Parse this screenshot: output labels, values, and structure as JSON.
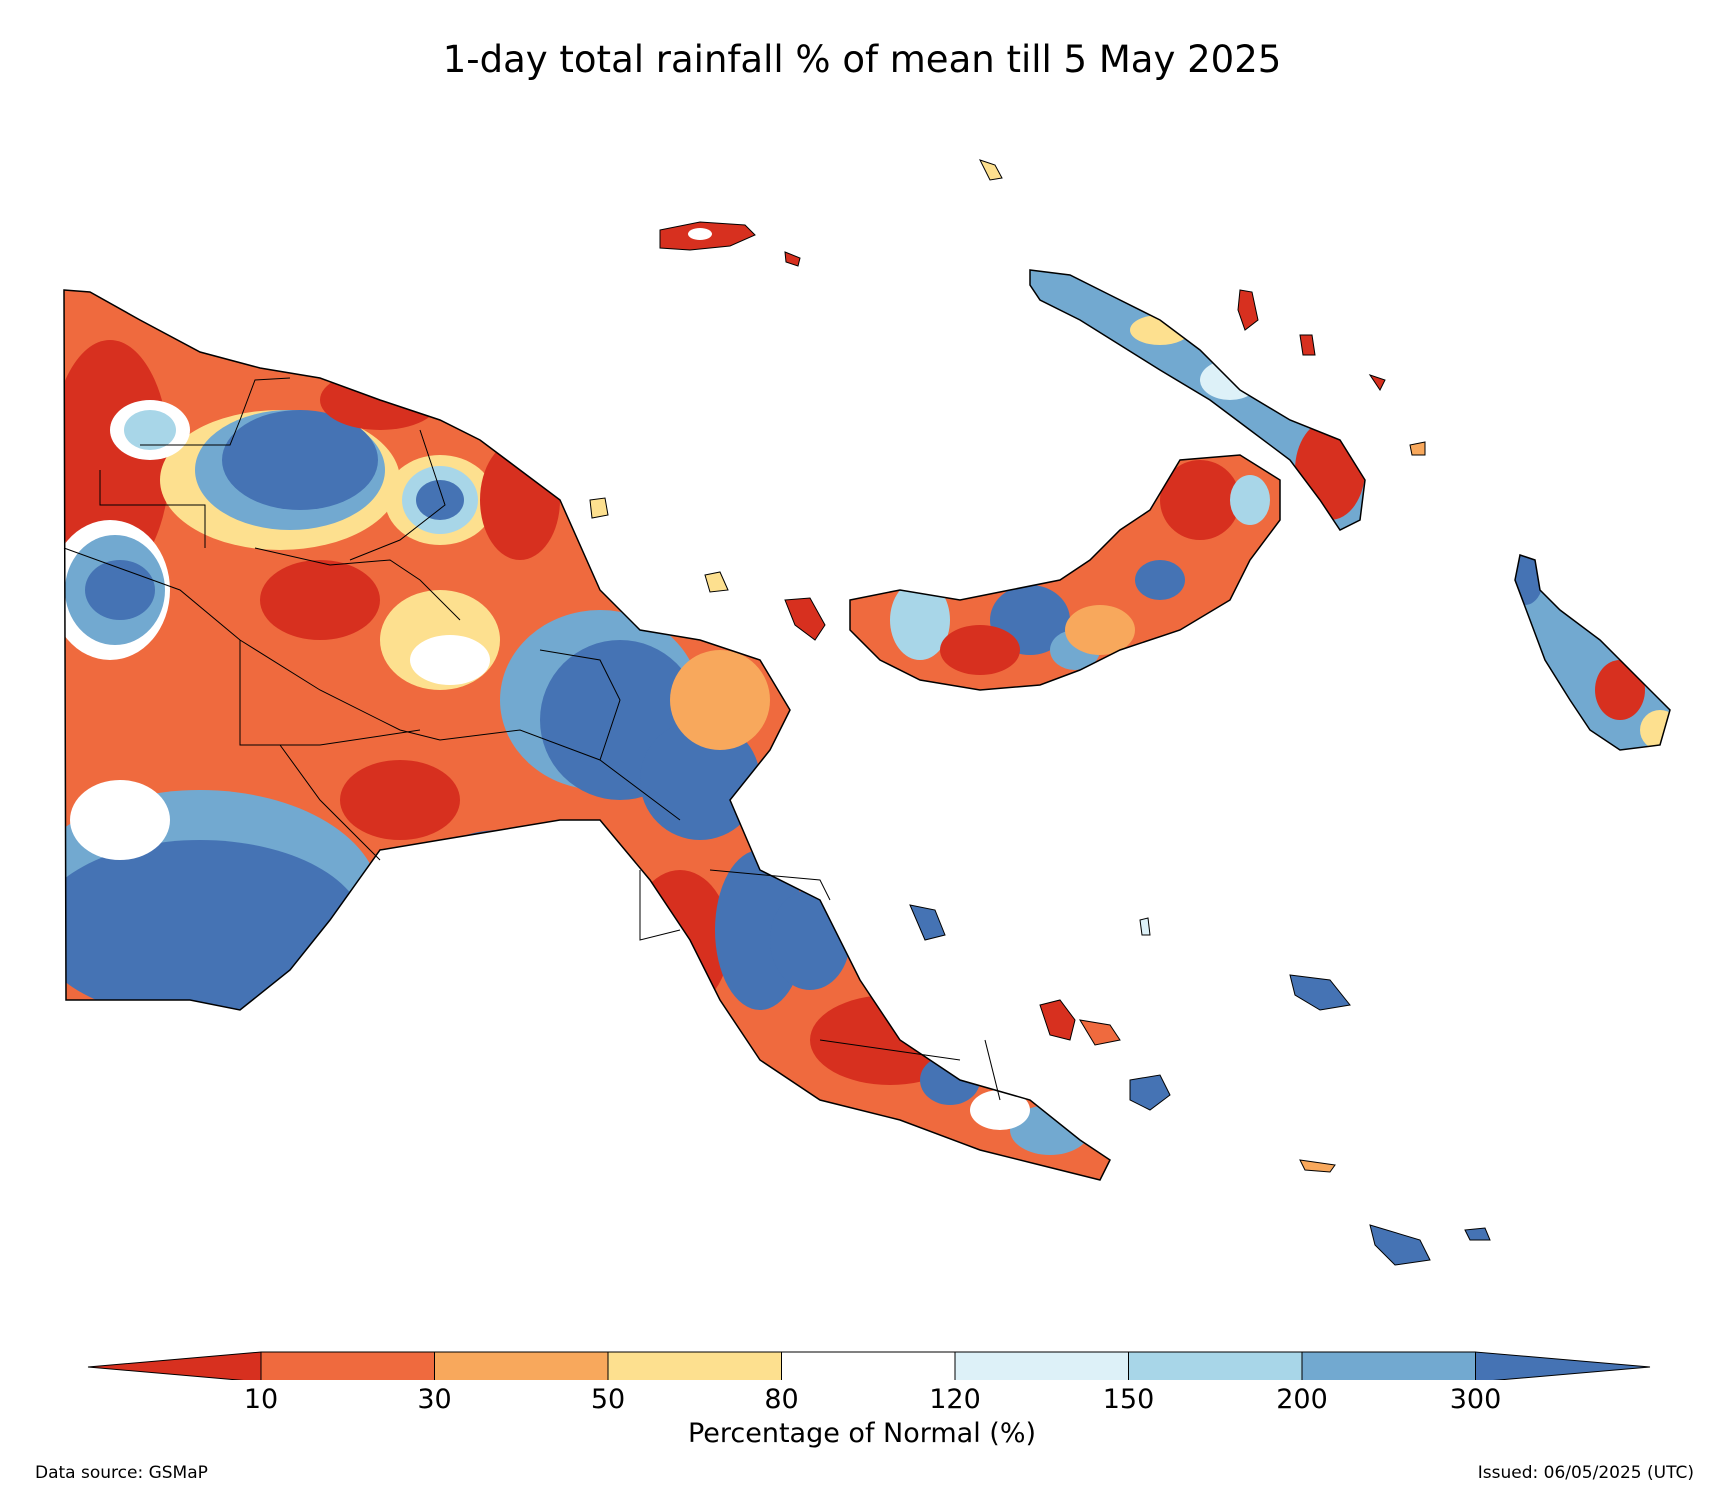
{
  "map": {
    "title": "1-day total rainfall % of mean till 5 May 2025",
    "region": "Papua New Guinea"
  },
  "legend": {
    "title": "Percentage of Normal (%)",
    "ticks": [
      "10",
      "30",
      "50",
      "80",
      "120",
      "150",
      "200",
      "300"
    ],
    "colors": [
      "#d7301f",
      "#ef6a3e",
      "#f8a85c",
      "#fde08f",
      "#ffffff",
      "#ddf1f8",
      "#a8d6e8",
      "#72a9d0",
      "#4573b4"
    ]
  },
  "footer": {
    "data_source": "Data source: GSMaP",
    "issued": "Issued: 06/05/2025 (UTC)"
  }
}
